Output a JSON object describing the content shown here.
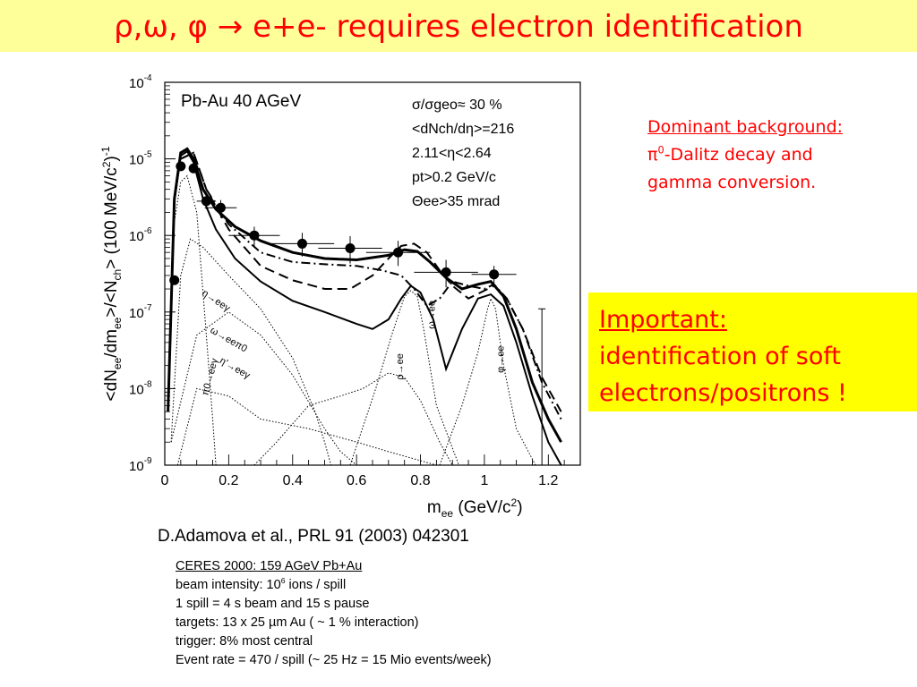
{
  "slide": {
    "title": "ρ,ω, φ → e+e- requires electron identification",
    "background_note": {
      "heading": "Dominant background:",
      "line1_prefix": "π",
      "line1_sup": "0",
      "line1_rest": "-Dalitz decay and",
      "line2": "gamma conversion."
    },
    "important": {
      "heading": "Important:",
      "line1": "identification of soft",
      "line2": "electrons/positrons !"
    },
    "citation": "D.Adamova et al., PRL  91 (2003) 042301",
    "info": {
      "line1": "CERES 2000:   159 AGeV Pb+Au",
      "line2_prefix": "beam intensity:  10",
      "line2_sup": "6",
      "line2_rest": " ions / spill",
      "line3": "1 spill = 4 s beam and 15 s pause",
      "line4": "targets:  13 x 25 µm  Au  ( ~ 1 % interaction)",
      "line5": "trigger: 8% most central",
      "line6": "Event rate = 470 / spill (~ 25 Hz = 15 Mio events/week)"
    }
  },
  "colors": {
    "title": "#ff0000",
    "title_bar": "#ffff99",
    "important_box": "#ffff00"
  },
  "chart_data": {
    "type": "scatter",
    "log_y": true,
    "xlim": [
      0,
      1.3
    ],
    "ylim": [
      1e-09,
      0.0001
    ],
    "x_ticks": [
      "0",
      "0.2",
      "0.4",
      "0.6",
      "0.8",
      "1",
      "1.2"
    ],
    "y_ticks": [
      "10-9",
      "10-8",
      "10-7",
      "10-6",
      "10-5",
      "10-4"
    ],
    "xlabel": "mee (GeV/c2)",
    "ylabel": "<dNee/dmee>/<Nch> (100 MeV/c2)-1",
    "system_label": "Pb-Au 40 AGeV",
    "cuts": [
      "σ/σgeo≈ 30 %",
      "<dNch/dη>=216",
      "2.11<η<2.64",
      "pt>0.2 GeV/c",
      "Θee>35 mrad"
    ],
    "component_labels": [
      "η→eeγ",
      "ω→eeπ0",
      "π0→eeγ",
      "η'→eeγ",
      "ρ→ee",
      "ω→ee",
      "φ→ee"
    ],
    "data_points": [
      {
        "x": 0.03,
        "y": 2.6e-07,
        "xerr": 0.01,
        "yerr_up": 3e-08,
        "yerr_down": 3e-08
      },
      {
        "x": 0.05,
        "y": 8e-06,
        "xerr": 0.01,
        "yerr_up": 8e-07,
        "yerr_down": 8e-07
      },
      {
        "x": 0.09,
        "y": 7.5e-06,
        "xerr": 0.01,
        "yerr_up": 8e-07,
        "yerr_down": 8e-07
      },
      {
        "x": 0.13,
        "y": 2.8e-06,
        "xerr": 0.03,
        "yerr_up": 6e-07,
        "yerr_down": 6e-07
      },
      {
        "x": 0.175,
        "y": 2.3e-06,
        "xerr": 0.05,
        "yerr_up": 6e-07,
        "yerr_down": 6e-07
      },
      {
        "x": 0.28,
        "y": 1e-06,
        "xerr": 0.08,
        "yerr_up": 3e-07,
        "yerr_down": 3e-07
      },
      {
        "x": 0.43,
        "y": 7.8e-07,
        "xerr": 0.1,
        "yerr_up": 3e-07,
        "yerr_down": 2.5e-07
      },
      {
        "x": 0.58,
        "y": 6.8e-07,
        "xerr": 0.1,
        "yerr_up": 3e-07,
        "yerr_down": 2.5e-07
      },
      {
        "x": 0.73,
        "y": 6e-07,
        "xerr": 0.1,
        "yerr_up": 2.5e-07,
        "yerr_down": 2e-07
      },
      {
        "x": 0.88,
        "y": 3.3e-07,
        "xerr": 0.1,
        "yerr_up": 1.5e-07,
        "yerr_down": 1.2e-07
      },
      {
        "x": 1.03,
        "y": 3.1e-07,
        "xerr": 0.07,
        "yerr_up": 9e-08,
        "yerr_down": 8e-08
      }
    ],
    "outlier_errbar": {
      "x": 1.18,
      "y_low": 1e-09,
      "y_high": 1.1e-07
    },
    "series": [
      {
        "style": "solid-thick",
        "x": [
          0.01,
          0.03,
          0.05,
          0.07,
          0.09,
          0.12,
          0.16,
          0.22,
          0.3,
          0.4,
          0.5,
          0.6,
          0.7,
          0.75,
          0.79,
          0.83,
          0.88,
          0.93,
          0.98,
          1.02,
          1.06,
          1.1,
          1.15,
          1.2,
          1.24
        ],
        "y": [
          5e-09,
          3e-06,
          1.2e-05,
          1.35e-05,
          1e-05,
          4e-06,
          2.2e-06,
          1.3e-06,
          8.5e-07,
          6e-07,
          5e-07,
          4.8e-07,
          5.5e-07,
          6.5e-07,
          6.2e-07,
          4.5e-07,
          2.8e-07,
          2e-07,
          2.3e-07,
          2.5e-07,
          1.6e-07,
          6e-08,
          1.2e-08,
          4e-09,
          2e-09
        ]
      },
      {
        "style": "solid",
        "x": [
          0.01,
          0.03,
          0.05,
          0.07,
          0.09,
          0.12,
          0.16,
          0.22,
          0.3,
          0.4,
          0.5,
          0.6,
          0.65,
          0.7,
          0.74,
          0.77,
          0.8,
          0.84,
          0.88,
          0.93,
          0.98,
          1.02,
          1.06,
          1.1,
          1.15,
          1.2,
          1.24
        ],
        "y": [
          5e-09,
          2.8e-06,
          1.1e-05,
          1.25e-05,
          9e-06,
          3e-06,
          1.2e-06,
          5e-07,
          2.5e-07,
          1.4e-07,
          1e-07,
          7e-08,
          6e-08,
          8e-08,
          1.5e-07,
          2.2e-07,
          1.8e-07,
          8e-08,
          1.8e-08,
          6e-08,
          1.5e-07,
          1.7e-07,
          1.2e-07,
          4e-08,
          8e-09,
          2e-09,
          1e-09
        ]
      },
      {
        "style": "dashdot",
        "x": [
          0.05,
          0.09,
          0.13,
          0.2,
          0.3,
          0.4,
          0.5,
          0.6,
          0.68,
          0.74,
          0.78,
          0.82,
          0.86,
          0.9,
          0.95,
          1.0,
          1.03,
          1.07,
          1.12,
          1.18,
          1.24
        ],
        "y": [
          1e-05,
          1.2e-05,
          4e-06,
          1.4e-06,
          6e-07,
          4.5e-07,
          4.2e-07,
          4e-07,
          3.5e-07,
          3e-07,
          2e-07,
          1.2e-07,
          1.5e-07,
          2.5e-07,
          2.2e-07,
          2e-07,
          2.3e-07,
          1.5e-07,
          6e-08,
          1.2e-08,
          4e-09
        ]
      },
      {
        "style": "dashed",
        "x": [
          0.05,
          0.09,
          0.13,
          0.2,
          0.3,
          0.4,
          0.5,
          0.58,
          0.65,
          0.7,
          0.74,
          0.78,
          0.82,
          0.86,
          0.9,
          0.95,
          1.0,
          1.03,
          1.07,
          1.12,
          1.18,
          1.24
        ],
        "y": [
          1e-05,
          1.2e-05,
          4e-06,
          1.2e-06,
          4e-07,
          2.6e-07,
          2e-07,
          2e-07,
          3e-07,
          5e-07,
          7.3e-07,
          7.8e-07,
          6e-07,
          3.5e-07,
          2.2e-07,
          1.5e-07,
          1.9e-07,
          2.2e-07,
          1.5e-07,
          6e-08,
          1.4e-08,
          5e-09
        ]
      }
    ],
    "components": [
      {
        "name": "η→eeγ",
        "x": [
          0.02,
          0.05,
          0.08,
          0.12,
          0.2,
          0.3,
          0.4,
          0.47,
          0.5,
          0.52
        ],
        "y": [
          2e-09,
          3e-07,
          9e-07,
          7e-07,
          3e-07,
          1.1e-07,
          2.5e-08,
          5e-09,
          2e-09,
          1e-09
        ]
      },
      {
        "name": "π0→eeγ",
        "x": [
          0.01,
          0.03,
          0.05,
          0.07,
          0.1,
          0.13,
          0.15,
          0.16
        ],
        "y": [
          5e-09,
          1.5e-06,
          5e-06,
          6e-06,
          2e-06,
          5e-08,
          4e-09,
          1e-09
        ]
      },
      {
        "name": "ω→eeπ0",
        "x": [
          0.02,
          0.1,
          0.2,
          0.3,
          0.4,
          0.5,
          0.55,
          0.6,
          0.62
        ],
        "y": [
          2e-09,
          5e-08,
          1e-07,
          5e-08,
          1.5e-08,
          3e-09,
          1.5e-09,
          1e-09,
          1e-09
        ]
      },
      {
        "name": "η'→eeγ",
        "x": [
          0.04,
          0.1,
          0.2,
          0.3,
          0.45,
          0.6,
          0.7,
          0.85,
          0.92
        ],
        "y": [
          1e-09,
          1e-08,
          8e-09,
          4e-09,
          3e-09,
          2e-09,
          1.5e-09,
          1e-09,
          1e-09
        ]
      },
      {
        "name": "ρ→ee",
        "x": [
          0.28,
          0.35,
          0.45,
          0.55,
          0.62,
          0.7,
          0.75,
          0.8,
          0.86,
          0.9
        ],
        "y": [
          1e-09,
          2e-09,
          6e-09,
          8e-09,
          1e-08,
          1.6e-08,
          1.4e-08,
          7e-09,
          2e-09,
          1e-09
        ]
      },
      {
        "name": "ω→ee",
        "x": [
          0.58,
          0.66,
          0.71,
          0.75,
          0.77,
          0.79,
          0.81,
          0.85,
          0.92
        ],
        "y": [
          1e-09,
          1e-08,
          5e-08,
          1.6e-07,
          1.9e-07,
          1.6e-07,
          6e-08,
          6e-09,
          1e-09
        ]
      },
      {
        "name": "φ→ee",
        "x": [
          0.86,
          0.93,
          0.98,
          1.01,
          1.02,
          1.035,
          1.06,
          1.1,
          1.16
        ],
        "y": [
          1e-09,
          6e-09,
          3e-08,
          1.1e-07,
          1.5e-07,
          1.1e-07,
          2e-08,
          3e-09,
          1e-09
        ]
      }
    ]
  }
}
